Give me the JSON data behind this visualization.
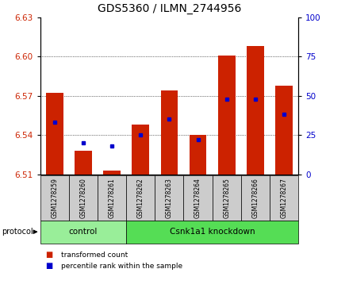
{
  "title": "GDS5360 / ILMN_2744956",
  "samples": [
    "GSM1278259",
    "GSM1278260",
    "GSM1278261",
    "GSM1278262",
    "GSM1278263",
    "GSM1278264",
    "GSM1278265",
    "GSM1278266",
    "GSM1278267"
  ],
  "transformed_counts": [
    6.572,
    6.528,
    6.513,
    6.548,
    6.574,
    6.54,
    6.601,
    6.608,
    6.578
  ],
  "percentile_ranks": [
    33,
    20,
    18,
    25,
    35,
    22,
    48,
    48,
    38
  ],
  "ymin": 6.51,
  "ymax": 6.63,
  "y_ticks": [
    6.51,
    6.54,
    6.57,
    6.6,
    6.63
  ],
  "y2min": 0,
  "y2max": 100,
  "y2_ticks": [
    0,
    25,
    50,
    75,
    100
  ],
  "bar_color": "#cc2200",
  "dot_color": "#0000cc",
  "bar_width": 0.6,
  "groups": [
    {
      "label": "control",
      "indices": [
        0,
        1,
        2
      ],
      "color": "#99ee99"
    },
    {
      "label": "Csnk1a1 knockdown",
      "indices": [
        3,
        4,
        5,
        6,
        7,
        8
      ],
      "color": "#55dd55"
    }
  ],
  "protocol_label": "protocol",
  "title_fontsize": 10,
  "tick_fontsize": 7.5,
  "axis_label_color_left": "#cc2200",
  "axis_label_color_right": "#0000cc",
  "legend_items": [
    "transformed count",
    "percentile rank within the sample"
  ],
  "legend_colors": [
    "#cc2200",
    "#0000cc"
  ],
  "sample_box_color": "#cccccc"
}
